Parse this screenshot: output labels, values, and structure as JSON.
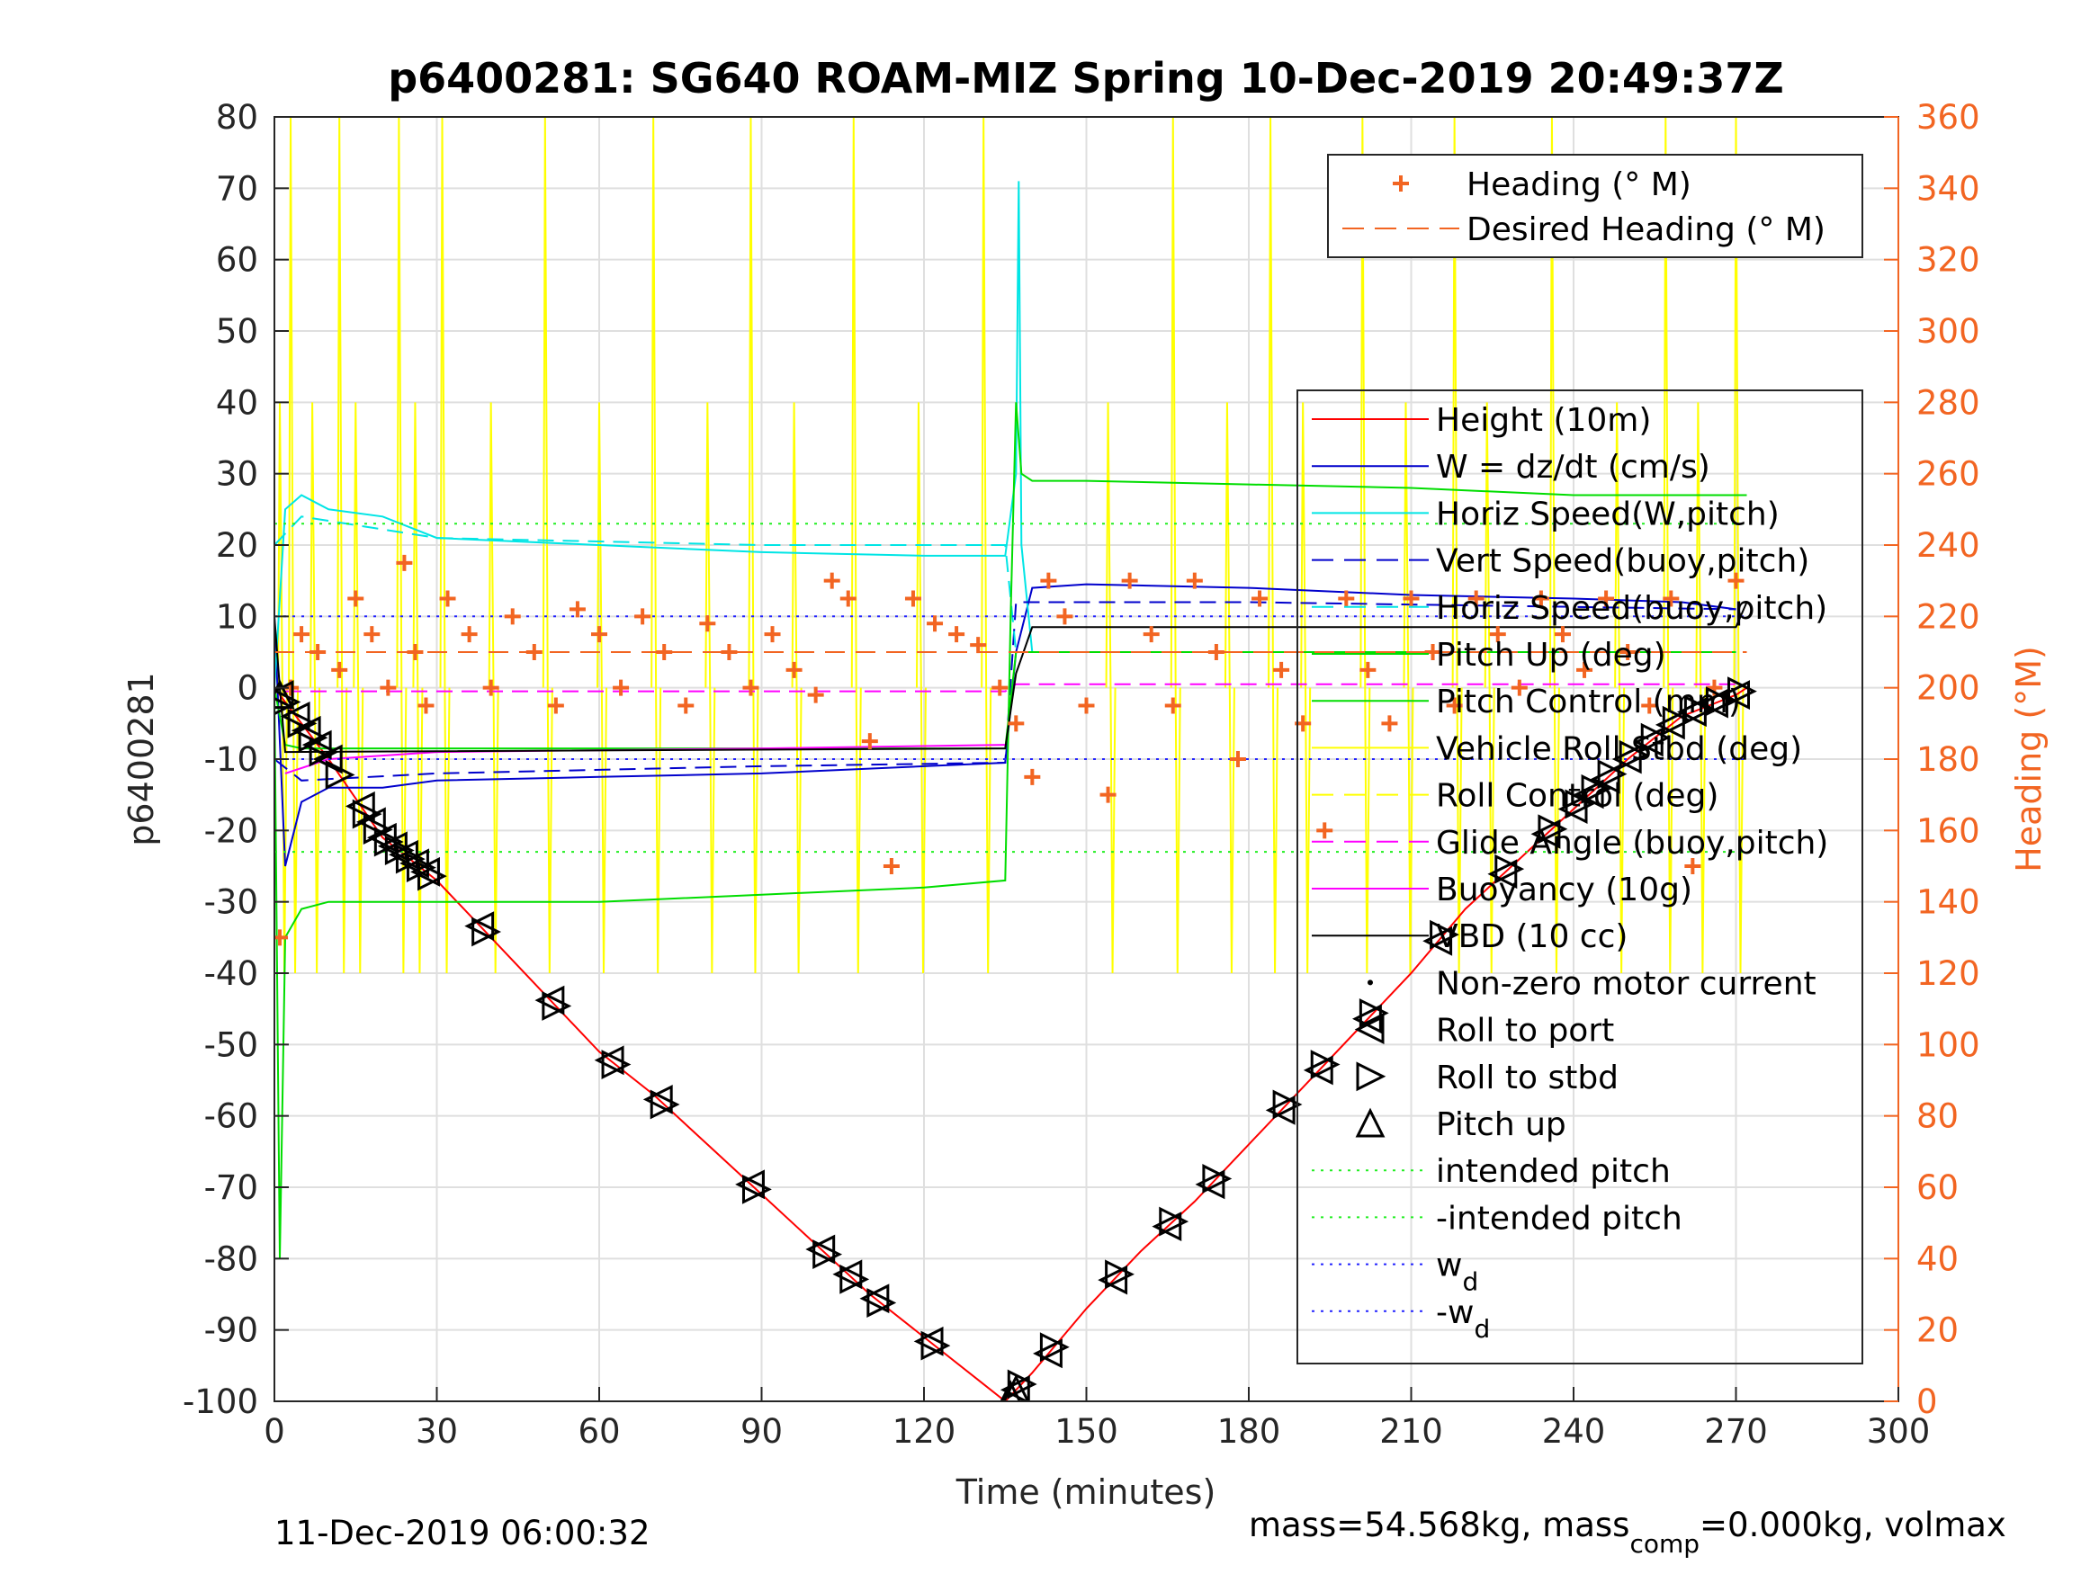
{
  "chart_data": {
    "type": "line",
    "title": "p6400281: SG640 ROAM-MIZ Spring 10-Dec-2019 20:49:37Z",
    "xlabel": "Time (minutes)",
    "ylabel": "p6400281",
    "y2label": "Heading (°M)",
    "xlim": [
      0,
      300
    ],
    "ylim": [
      -100,
      80
    ],
    "y2lim": [
      0,
      360
    ],
    "xticks": [
      "0",
      "30",
      "60",
      "90",
      "120",
      "150",
      "180",
      "210",
      "240",
      "270",
      "300"
    ],
    "yticks": [
      "80",
      "70",
      "60",
      "50",
      "40",
      "30",
      "20",
      "10",
      "0",
      "-10",
      "-20",
      "-30",
      "-40",
      "-50",
      "-60",
      "-70",
      "-80",
      "-90",
      "-100"
    ],
    "y2ticks": [
      "360",
      "340",
      "320",
      "300",
      "280",
      "260",
      "240",
      "220",
      "200",
      "180",
      "160",
      "140",
      "120",
      "100",
      "80",
      "60",
      "40",
      "20",
      "0"
    ],
    "grid": true,
    "footer_left": "11-Dec-2019 06:00:32",
    "footer_right_prefix": "mass=54.568kg, mass",
    "footer_right_sub": "comp",
    "footer_right_suffix": "=0.000kg, volmax",
    "colors": {
      "heading": "#f26522",
      "height": "#ff0000",
      "w": "#0000cc",
      "horiz_speed": "#00e5e5",
      "pitch": "#00dd00",
      "roll": "#ffff00",
      "glide": "#ff00ff",
      "vbd": "#000000",
      "intended_pitch": "#22ee22",
      "wd": "#2222ff"
    },
    "legend_top": [
      {
        "label": "Heading (° M)",
        "color": "#f26522",
        "style": "plus"
      },
      {
        "label": "Desired Heading (° M)",
        "color": "#f26522",
        "style": "dashed"
      }
    ],
    "legend_main": [
      {
        "label": "Height (10m)",
        "color": "#ff0000",
        "style": "solid"
      },
      {
        "label": "W = dz/dt (cm/s)",
        "color": "#0000cc",
        "style": "solid"
      },
      {
        "label": "Horiz Speed(W,pitch)",
        "color": "#00e5e5",
        "style": "solid"
      },
      {
        "label": "Vert Speed(buoy,pitch)",
        "color": "#0000cc",
        "style": "dashed"
      },
      {
        "label": "Horiz Speed(buoy,pitch)",
        "color": "#00e5e5",
        "style": "dashed"
      },
      {
        "label": "Pitch Up (deg)",
        "color": "#00dd00",
        "style": "solid"
      },
      {
        "label": "Pitch Control (mm)",
        "color": "#00dd00",
        "style": "solid"
      },
      {
        "label": "Vehicle Roll Stbd (deg)",
        "color": "#ffff00",
        "style": "solid"
      },
      {
        "label": "Roll Control (deg)",
        "color": "#ffff00",
        "style": "dashed"
      },
      {
        "label": "Glide Angle (buoy,pitch)",
        "color": "#ff00ff",
        "style": "dashed"
      },
      {
        "label": "Buoyancy (10g)",
        "color": "#ff00ff",
        "style": "solid"
      },
      {
        "label": "VBD (10 cc)",
        "color": "#000000",
        "style": "solid"
      },
      {
        "label": "Non-zero motor current",
        "color": "#000000",
        "style": "dot"
      },
      {
        "label": "Roll to port",
        "color": "#000000",
        "style": "triangle-left"
      },
      {
        "label": "Roll to stbd",
        "color": "#000000",
        "style": "triangle-right"
      },
      {
        "label": "Pitch up",
        "color": "#000000",
        "style": "triangle-up"
      },
      {
        "label": "intended pitch",
        "color": "#22ee22",
        "style": "dotted"
      },
      {
        "label": "-intended pitch",
        "color": "#22ee22",
        "style": "dotted"
      },
      {
        "label": "w",
        "sub": "d",
        "color": "#2222ff",
        "style": "dotted"
      },
      {
        "label": "-w",
        "sub": "d",
        "color": "#2222ff",
        "style": "dotted"
      }
    ],
    "series": [
      {
        "name": "Height (10m)",
        "axis": "left",
        "x": [
          0,
          5,
          10,
          20,
          30,
          40,
          50,
          60,
          70,
          80,
          90,
          100,
          110,
          120,
          130,
          135,
          140,
          150,
          160,
          170,
          180,
          190,
          200,
          210,
          220,
          230,
          240,
          250,
          260,
          270,
          272
        ],
        "y": [
          0,
          -5,
          -10,
          -21,
          -27,
          -35,
          -43,
          -51,
          -57,
          -64,
          -71,
          -78,
          -85,
          -91,
          -97,
          -100,
          -96,
          -87,
          -79,
          -72,
          -64,
          -56,
          -48,
          -40,
          -31,
          -24,
          -17,
          -10,
          -4,
          -1,
          0
        ]
      },
      {
        "name": "W = dz/dt (cm/s)",
        "axis": "left",
        "x": [
          0,
          2,
          5,
          10,
          20,
          30,
          60,
          90,
          120,
          135,
          137,
          140,
          150,
          180,
          210,
          240,
          260,
          270
        ],
        "y": [
          10,
          -25,
          -16,
          -14,
          -14,
          -13,
          -12.5,
          -12,
          -11,
          -10.5,
          5,
          14,
          14.5,
          14,
          13,
          12.5,
          12,
          11
        ]
      },
      {
        "name": "Horiz Speed(W,pitch)",
        "axis": "left",
        "x": [
          0,
          2,
          5,
          10,
          20,
          30,
          60,
          90,
          120,
          135,
          137,
          137.5,
          138,
          140
        ],
        "y": [
          0,
          25,
          27,
          25,
          24,
          21,
          20,
          19,
          18.5,
          18.5,
          30,
          71,
          20,
          5
        ]
      },
      {
        "name": "Vert Speed(buoy,pitch)",
        "axis": "left",
        "x": [
          0,
          5,
          30,
          90,
          135,
          137,
          180,
          270
        ],
        "y": [
          -10,
          -13,
          -12,
          -11,
          -10.5,
          12,
          12,
          11
        ]
      },
      {
        "name": "Horiz Speed(buoy,pitch)",
        "axis": "left",
        "x": [
          0,
          5,
          30,
          90,
          135,
          137,
          180,
          270
        ],
        "y": [
          20,
          24,
          21,
          20,
          20,
          5,
          5,
          5
        ]
      },
      {
        "name": "Pitch Up (deg)",
        "axis": "left",
        "x": [
          0,
          1,
          2,
          5,
          10,
          30,
          60,
          90,
          120,
          135,
          136,
          137,
          138,
          140,
          150,
          180,
          210,
          240,
          270,
          272
        ],
        "y": [
          0,
          -80,
          -35,
          -31,
          -30,
          -30,
          -30,
          -29,
          -28,
          -27,
          10,
          40,
          30,
          29,
          29,
          28.5,
          28,
          27,
          27,
          27
        ]
      },
      {
        "name": "Pitch Control (mm)",
        "axis": "left",
        "x": [
          0,
          2,
          5,
          135,
          137,
          270
        ],
        "y": [
          0,
          -8,
          -8.5,
          -8.5,
          5,
          5
        ]
      },
      {
        "name": "Glide Angle (buoy,pitch)",
        "axis": "left",
        "x": [
          2,
          135,
          137,
          270
        ],
        "y": [
          -0.5,
          -0.5,
          0.5,
          0.5
        ]
      },
      {
        "name": "Buoyancy (10g)",
        "axis": "left",
        "x": [
          2,
          10,
          30,
          90,
          135
        ],
        "y": [
          -12,
          -10,
          -9,
          -8.5,
          -8
        ]
      },
      {
        "name": "VBD (10 cc)",
        "axis": "left",
        "x": [
          0,
          1,
          2,
          135,
          137,
          140,
          270,
          272
        ],
        "y": [
          10,
          0,
          -9,
          -8.5,
          2,
          8.5,
          8.5,
          12
        ]
      },
      {
        "name": "intended pitch",
        "axis": "left",
        "x": [
          0,
          272
        ],
        "y": [
          23,
          23
        ]
      },
      {
        "name": "-intended pitch",
        "axis": "left",
        "x": [
          0,
          272
        ],
        "y": [
          -23,
          -23
        ]
      },
      {
        "name": "wd",
        "axis": "left",
        "x": [
          0,
          272
        ],
        "y": [
          10,
          10
        ]
      },
      {
        "name": "-wd",
        "axis": "left",
        "x": [
          0,
          272
        ],
        "y": [
          -10,
          -10
        ]
      },
      {
        "name": "Heading (° M)",
        "axis": "right",
        "x": [
          1,
          3,
          5,
          8,
          12,
          15,
          18,
          21,
          24,
          26,
          28,
          32,
          36,
          40,
          44,
          48,
          52,
          56,
          60,
          64,
          68,
          72,
          76,
          80,
          84,
          88,
          92,
          96,
          100,
          103,
          106,
          110,
          114,
          118,
          122,
          126,
          130,
          134,
          137,
          140,
          143,
          146,
          150,
          154,
          158,
          162,
          166,
          170,
          174,
          178,
          182,
          186,
          190,
          194,
          198,
          202,
          206,
          210,
          214,
          218,
          222,
          226,
          230,
          234,
          238,
          242,
          246,
          250,
          254,
          258,
          262,
          266,
          270
        ],
        "y": [
          130,
          200,
          215,
          210,
          205,
          225,
          215,
          200,
          235,
          210,
          195,
          225,
          215,
          200,
          220,
          210,
          195,
          222,
          215,
          200,
          220,
          210,
          195,
          218,
          210,
          200,
          215,
          205,
          198,
          230,
          225,
          185,
          150,
          225,
          218,
          215,
          212,
          200,
          190,
          175,
          230,
          220,
          195,
          170,
          230,
          215,
          195,
          230,
          210,
          180,
          225,
          205,
          190,
          160,
          225,
          205,
          190,
          225,
          210,
          195,
          225,
          215,
          200,
          225,
          215,
          205,
          225,
          210,
          195,
          225,
          150,
          200,
          230
        ]
      },
      {
        "name": "Desired Heading (° M)",
        "axis": "right",
        "x": [
          0,
          272
        ],
        "y": [
          210,
          210
        ]
      }
    ],
    "roll_port_x": [
      1,
      4,
      6,
      8,
      10,
      16,
      18,
      20,
      22,
      24,
      26,
      28,
      38,
      51,
      62,
      71,
      88,
      101,
      106,
      111,
      121,
      137,
      143,
      155,
      165,
      173,
      186,
      193,
      202,
      215,
      227,
      235,
      240,
      243,
      246,
      250,
      254,
      258,
      262,
      266,
      270
    ],
    "roll_stbd_x": [
      2,
      5,
      7,
      9,
      12,
      17,
      19,
      21,
      23,
      25,
      27,
      29,
      39,
      52,
      63,
      72,
      89,
      102,
      107,
      112,
      122,
      138,
      144,
      156,
      166,
      174,
      187,
      194,
      203,
      216,
      228,
      236,
      241,
      244,
      247,
      251,
      255,
      259,
      263,
      267,
      271
    ],
    "pitch_up_x": [
      1,
      136,
      137
    ],
    "roll_spike_x": [
      1,
      3,
      7,
      12,
      15,
      23,
      26,
      31,
      40,
      50,
      60,
      70,
      80,
      88,
      96,
      107,
      119,
      131,
      154,
      166,
      176,
      184,
      190,
      201,
      209,
      218,
      224,
      236,
      248,
      257,
      263,
      270
    ]
  }
}
